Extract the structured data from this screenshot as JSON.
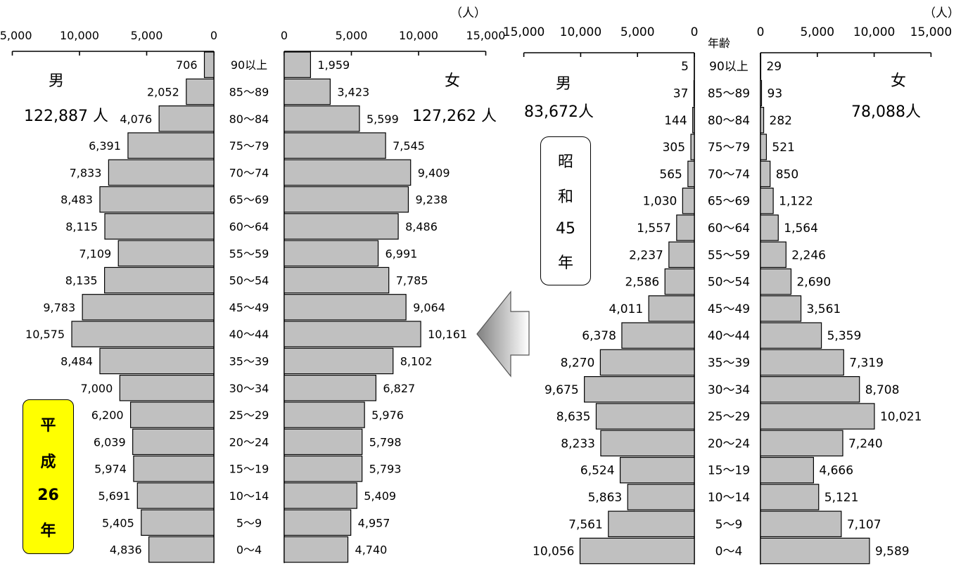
{
  "units_label": "（人）",
  "age_header": "年齢",
  "chart_data": [
    {
      "type": "bar",
      "orientation": "horizontal-population-pyramid",
      "panel": "left",
      "era_label_chars": [
        "平",
        "成",
        "26",
        "年"
      ],
      "male_label": "男",
      "female_label": "女",
      "male_total": "122,887 人",
      "female_total": "127,262 人",
      "categories": [
        "90以上",
        "85～89",
        "80～84",
        "75～79",
        "70～74",
        "65～69",
        "60～64",
        "55～59",
        "50～54",
        "45～49",
        "40～44",
        "35～39",
        "30～34",
        "25～29",
        "20～24",
        "15～19",
        "10～14",
        "5～9",
        "0～4"
      ],
      "series": [
        {
          "name": "男",
          "values": [
            706,
            2052,
            4076,
            6391,
            7833,
            8483,
            8115,
            7109,
            8135,
            9783,
            10575,
            8484,
            7000,
            6200,
            6039,
            5974,
            5691,
            5405,
            4836
          ],
          "labels": [
            "706",
            "2,052",
            "4,076",
            "6,391",
            "7,833",
            "8,483",
            "8,115",
            "7,109",
            "8,135",
            "9,783",
            "10,575",
            "8,484",
            "7,000",
            "6,200",
            "6,039",
            "5,974",
            "5,691",
            "5,405",
            "4,836"
          ]
        },
        {
          "name": "女",
          "values": [
            1959,
            3423,
            5599,
            7545,
            9409,
            9238,
            8486,
            6991,
            7785,
            9064,
            10161,
            8102,
            6827,
            5976,
            5798,
            5793,
            5409,
            4957,
            4740
          ],
          "labels": [
            "1,959",
            "3,423",
            "5,599",
            "7,545",
            "9,409",
            "9,238",
            "8,486",
            "6,991",
            "7,785",
            "9,064",
            "10,161",
            "8,102",
            "6,827",
            "5,976",
            "5,798",
            "5,793",
            "5,409",
            "4,957",
            "4,740"
          ]
        }
      ],
      "male_ticks": [
        "15,000",
        "10,000",
        "5,000",
        "0"
      ],
      "female_ticks": [
        "0",
        "5,000",
        "10,000",
        "15,000"
      ],
      "xlim": [
        0,
        15000
      ]
    },
    {
      "type": "bar",
      "orientation": "horizontal-population-pyramid",
      "panel": "right",
      "era_label_chars": [
        "昭",
        "和",
        "45",
        "年"
      ],
      "male_label": "男",
      "female_label": "女",
      "male_total": "83,672人",
      "female_total": "78,088人",
      "categories": [
        "90以上",
        "85～89",
        "80～84",
        "75～79",
        "70～74",
        "65～69",
        "60～64",
        "55～59",
        "50～54",
        "45～49",
        "40～44",
        "35～39",
        "30～34",
        "25～29",
        "20～24",
        "15～19",
        "10～14",
        "5～9",
        "0～4"
      ],
      "series": [
        {
          "name": "男",
          "values": [
            5,
            37,
            144,
            305,
            565,
            1030,
            1557,
            2237,
            2586,
            4011,
            6378,
            8270,
            9675,
            8635,
            8233,
            6524,
            5863,
            7561,
            10056
          ],
          "labels": [
            "5",
            "37",
            "144",
            "305",
            "565",
            "1,030",
            "1,557",
            "2,237",
            "2,586",
            "4,011",
            "6,378",
            "8,270",
            "9,675",
            "8,635",
            "8,233",
            "6,524",
            "5,863",
            "7,561",
            "10,056"
          ]
        },
        {
          "name": "女",
          "values": [
            29,
            93,
            282,
            521,
            850,
            1122,
            1564,
            2246,
            2690,
            3561,
            5359,
            7319,
            8708,
            10021,
            7240,
            4666,
            5121,
            7107,
            9589
          ],
          "labels": [
            "29",
            "93",
            "282",
            "521",
            "850",
            "1,122",
            "1,564",
            "2,246",
            "2,690",
            "3,561",
            "5,359",
            "7,319",
            "8,708",
            "10,021",
            "7,240",
            "4,666",
            "5,121",
            "7,107",
            "9,589"
          ]
        }
      ],
      "male_ticks": [
        "15,000",
        "10,000",
        "5,000",
        "0"
      ],
      "female_ticks": [
        "0",
        "5,000",
        "10,000",
        "15,000"
      ],
      "xlim": [
        0,
        15000
      ]
    }
  ]
}
